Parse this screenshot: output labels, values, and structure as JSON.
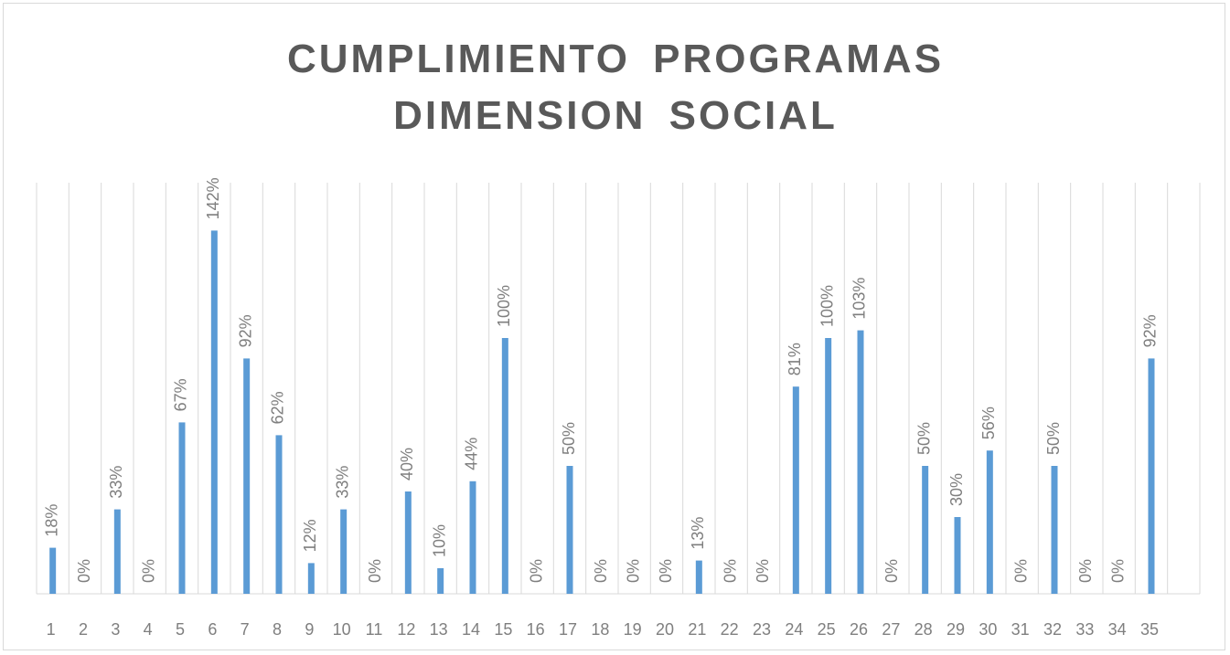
{
  "chart_data": {
    "type": "bar",
    "title": "CUMPLIMIENTO PROGRAMAS DIMENSION SOCIAL",
    "categories": [
      "1",
      "2",
      "3",
      "4",
      "5",
      "6",
      "7",
      "8",
      "9",
      "10",
      "11",
      "12",
      "13",
      "14",
      "15",
      "16",
      "17",
      "18",
      "19",
      "20",
      "21",
      "22",
      "23",
      "24",
      "25",
      "26",
      "27",
      "28",
      "29",
      "30",
      "31",
      "32",
      "33",
      "34",
      "35"
    ],
    "values": [
      18,
      0,
      33,
      0,
      67,
      142,
      92,
      62,
      12,
      33,
      0,
      40,
      10,
      44,
      100,
      0,
      50,
      0,
      0,
      0,
      13,
      0,
      0,
      81,
      100,
      103,
      0,
      50,
      30,
      56,
      0,
      50,
      0,
      0,
      92
    ],
    "value_labels": [
      "18%",
      "0%",
      "33%",
      "0%",
      "67%",
      "142%",
      "92%",
      "62%",
      "12%",
      "33%",
      "0%",
      "40%",
      "10%",
      "44%",
      "100%",
      "0%",
      "50%",
      "0%",
      "0%",
      "0%",
      "13%",
      "0%",
      "0%",
      "81%",
      "100%",
      "103%",
      "0%",
      "50%",
      "30%",
      "56%",
      "0%",
      "50%",
      "0%",
      "0%",
      "92%"
    ],
    "color": "#5b9bd5"
  }
}
